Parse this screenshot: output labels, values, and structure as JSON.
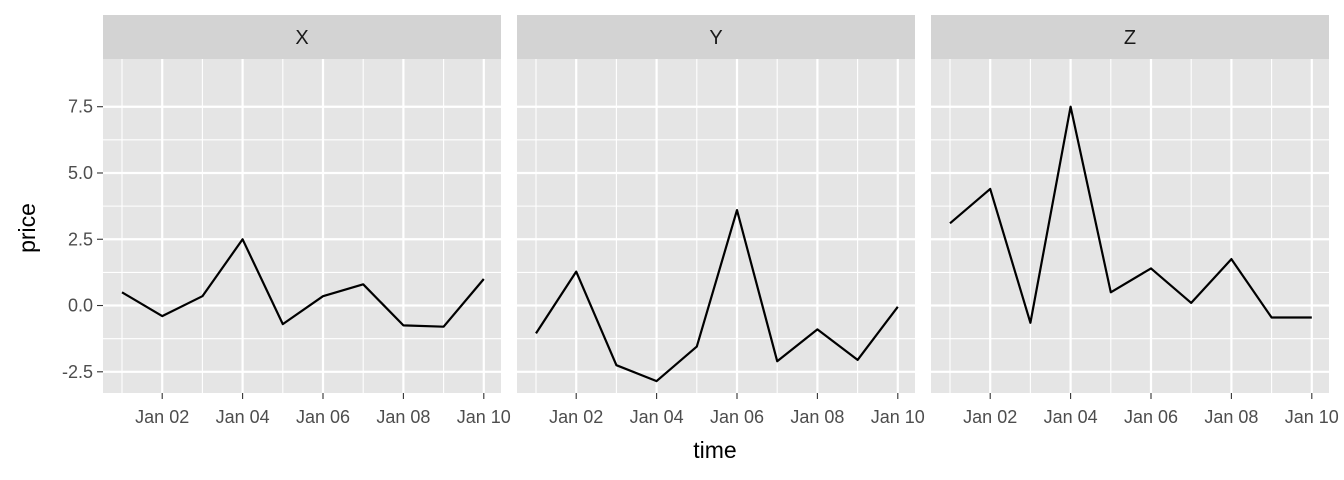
{
  "chart_data": {
    "type": "line",
    "facet_by": "series",
    "xlabel": "time",
    "ylabel": "price",
    "x": [
      "2023-01-01",
      "2023-01-02",
      "2023-01-03",
      "2023-01-04",
      "2023-01-05",
      "2023-01-06",
      "2023-01-07",
      "2023-01-08",
      "2023-01-09",
      "2023-01-10"
    ],
    "x_tick_labels": [
      "Jan 02",
      "Jan 04",
      "Jan 06",
      "Jan 08",
      "Jan 10"
    ],
    "ylim": [
      -3.3,
      9.3
    ],
    "y_ticks": [
      -2.5,
      0.0,
      2.5,
      5.0,
      7.5
    ],
    "y_tick_labels": [
      "-2.5",
      "0.0",
      "2.5",
      "5.0",
      "7.5"
    ],
    "grid": true,
    "panel_background": "#e5e5e5",
    "strip_background": "#d3d3d3",
    "line_color": "#000000",
    "series": [
      {
        "name": "X",
        "values": [
          0.5,
          -0.4,
          0.35,
          2.5,
          -0.7,
          0.35,
          0.8,
          -0.75,
          -0.8,
          1.0
        ]
      },
      {
        "name": "Y",
        "values": [
          -1.05,
          1.28,
          -2.25,
          -2.85,
          -1.55,
          3.6,
          -2.1,
          -0.9,
          -2.05,
          -0.05
        ]
      },
      {
        "name": "Z",
        "values": [
          3.1,
          4.4,
          -0.65,
          7.5,
          0.5,
          1.4,
          0.1,
          1.75,
          -0.45,
          -0.45
        ]
      }
    ]
  }
}
